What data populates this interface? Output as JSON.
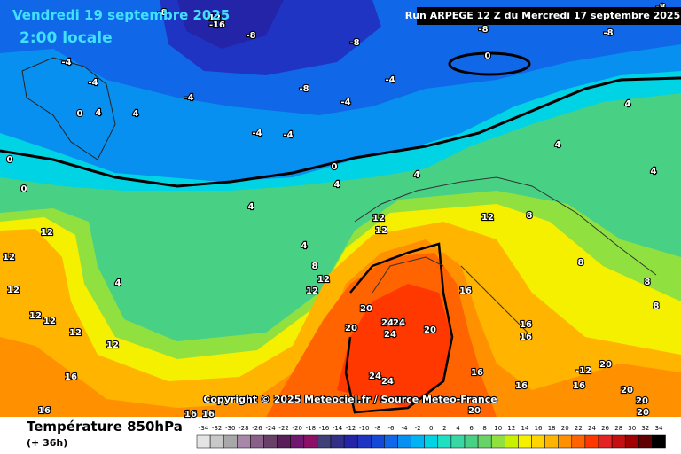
{
  "header": {
    "date": "Vendredi 19 septembre 2025",
    "time": "2:00 locale",
    "run": "Run ARPEGE 12 Z du Mercredi 17 septembre 2025"
  },
  "copyright": "Copyright © 2025 Meteociel.fr / Source Meteo-France",
  "footer": {
    "title": "Température 850hPa",
    "lead": "(+ 36h)"
  },
  "scale": {
    "values": [
      -34,
      -32,
      -30,
      -28,
      -26,
      -24,
      -22,
      -20,
      -18,
      -16,
      -14,
      -12,
      -10,
      -8,
      -6,
      -4,
      -2,
      0,
      2,
      4,
      6,
      8,
      10,
      12,
      14,
      16,
      18,
      20,
      22,
      24,
      26,
      28,
      30,
      32,
      34
    ],
    "colors": [
      "#e4e4e4",
      "#c8c8c8",
      "#a8a8a8",
      "#a888a8",
      "#886088",
      "#684068",
      "#582058",
      "#701870",
      "#8a1068",
      "#404078",
      "#303088",
      "#2424a8",
      "#2034c4",
      "#1448d8",
      "#1068e8",
      "#0890f0",
      "#00b4f4",
      "#00d4e4",
      "#20e0c4",
      "#38d8a4",
      "#48d084",
      "#68d468",
      "#90e040",
      "#c8f000",
      "#f4f000",
      "#ffd400",
      "#ffb400",
      "#ff9000",
      "#ff6400",
      "#ff3800",
      "#e42424",
      "#c41010",
      "#a00000",
      "#600000",
      "#000000"
    ]
  },
  "contour_labels": [
    -8,
    -12,
    -16,
    -8,
    -8,
    -8,
    -8,
    -8,
    0,
    -4,
    -4,
    -4,
    -4,
    -8,
    -4,
    -4,
    -4,
    4,
    0,
    4,
    0,
    0,
    0,
    4,
    4,
    4,
    4,
    4,
    4,
    4,
    4,
    12,
    12,
    12,
    12,
    12,
    12,
    12,
    16,
    16,
    16,
    16,
    8,
    12,
    12,
    12,
    12,
    12,
    8,
    8,
    16,
    20,
    20,
    24,
    24,
    24,
    20,
    16,
    16,
    24,
    24,
    16,
    16,
    16,
    -12,
    20,
    20,
    20,
    20,
    20,
    8,
    8
  ]
}
